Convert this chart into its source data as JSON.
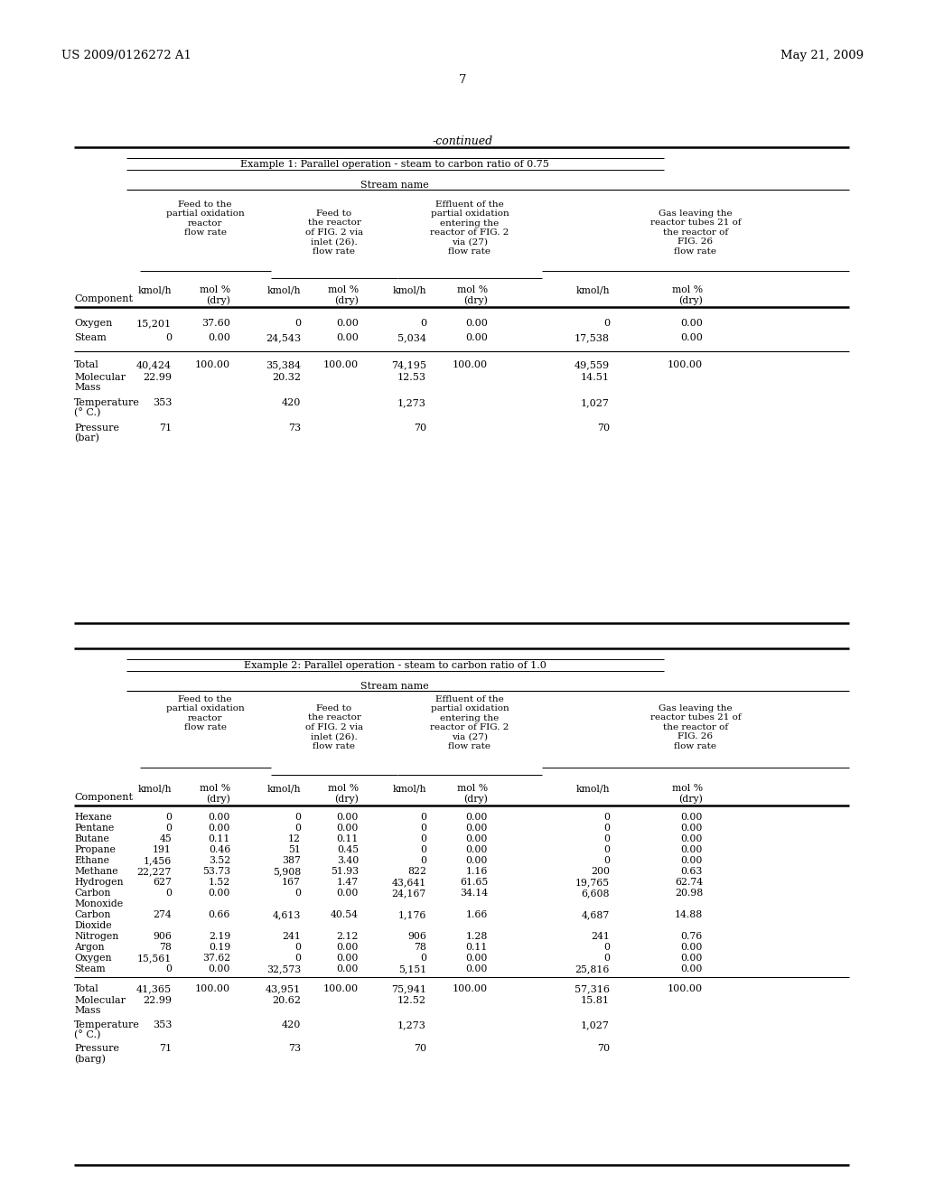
{
  "header_left": "US 2009/0126272 A1",
  "header_right": "May 21, 2009",
  "page_number": "7",
  "continued_label": "-continued",
  "table1": {
    "example_label": "Example 1: Parallel operation - steam to carbon ratio of 0.75",
    "stream_name_label": "Stream name",
    "col_header1": "Feed to the\npartial oxidation\nreactor\nflow rate",
    "col_header2": "Feed to\nthe reactor\nof FIG. 2 via\ninlet (26).\nflow rate",
    "col_header3": "Effluent of the\npartial oxidation\nentering the\nreactor of FIG. 2\nvia (27)\nflow rate",
    "col_header4": "Gas leaving the\nreactor tubes 21 of\nthe reactor of\nFIG. 26\nflow rate",
    "rows": [
      [
        "Oxygen",
        "15,201",
        "37.60",
        "0",
        "0.00",
        "0",
        "0.00",
        "0",
        "0.00"
      ],
      [
        "Steam",
        "0",
        "0.00",
        "24,543",
        "0.00",
        "5,034",
        "0.00",
        "17,538",
        "0.00"
      ]
    ],
    "summary": [
      [
        "Total",
        "40,424",
        "100.00",
        "35,384",
        "100.00",
        "74,195",
        "100.00",
        "49,559",
        "100.00"
      ],
      [
        "Molecular",
        "22.99",
        "",
        "20.32",
        "",
        "12.53",
        "",
        "14.51",
        ""
      ],
      [
        "Mass",
        "",
        "",
        "",
        "",
        "",
        "",
        "",
        ""
      ],
      [
        "Temperature",
        "353",
        "",
        "420",
        "",
        "1,273",
        "",
        "1,027",
        ""
      ],
      [
        "° C.",
        "",
        "",
        "",
        "",
        "",
        "",
        "",
        ""
      ],
      [
        "Pressure",
        "71",
        "",
        "73",
        "",
        "70",
        "",
        "70",
        ""
      ],
      [
        "bar",
        "",
        "",
        "",
        "",
        "",
        "",
        "",
        ""
      ]
    ]
  },
  "table2": {
    "example_label": "Example 2: Parallel operation - steam to carbon ratio of 1.0",
    "stream_name_label": "Stream name",
    "col_header1": "Feed to the\npartial oxidation\nreactor\nflow rate",
    "col_header2": "Feed to\nthe reactor\nof FIG. 2 via\ninlet (26).\nflow rate",
    "col_header3": "Effluent of the\npartial oxidation\nentering the\nreactor of FIG. 2\nvia (27)\nflow rate",
    "col_header4": "Gas leaving the\nreactor tubes 21 of\nthe reactor of\nFIG. 26\nflow rate",
    "rows": [
      [
        "Hexane",
        "0",
        "0.00",
        "0",
        "0.00",
        "0",
        "0.00",
        "0",
        "0.00"
      ],
      [
        "Pentane",
        "0",
        "0.00",
        "0",
        "0.00",
        "0",
        "0.00",
        "0",
        "0.00"
      ],
      [
        "Butane",
        "45",
        "0.11",
        "12",
        "0.11",
        "0",
        "0.00",
        "0",
        "0.00"
      ],
      [
        "Propane",
        "191",
        "0.46",
        "51",
        "0.45",
        "0",
        "0.00",
        "0",
        "0.00"
      ],
      [
        "Ethane",
        "1,456",
        "3.52",
        "387",
        "3.40",
        "0",
        "0.00",
        "0",
        "0.00"
      ],
      [
        "Methane",
        "22,227",
        "53.73",
        "5,908",
        "51.93",
        "822",
        "1.16",
        "200",
        "0.63"
      ],
      [
        "Hydrogen",
        "627",
        "1.52",
        "167",
        "1.47",
        "43,641",
        "61.65",
        "19,765",
        "62.74"
      ],
      [
        "Carbon",
        "0",
        "0.00",
        "0",
        "0.00",
        "24,167",
        "34.14",
        "6,608",
        "20.98"
      ],
      [
        "Monoxide",
        "",
        "",
        "",
        "",
        "",
        "",
        "",
        ""
      ],
      [
        "Carbon",
        "274",
        "0.66",
        "4,613",
        "40.54",
        "1,176",
        "1.66",
        "4,687",
        "14.88"
      ],
      [
        "Dioxide",
        "",
        "",
        "",
        "",
        "",
        "",
        "",
        ""
      ],
      [
        "Nitrogen",
        "906",
        "2.19",
        "241",
        "2.12",
        "906",
        "1.28",
        "241",
        "0.76"
      ],
      [
        "Argon",
        "78",
        "0.19",
        "0",
        "0.00",
        "78",
        "0.11",
        "0",
        "0.00"
      ],
      [
        "Oxygen",
        "15,561",
        "37.62",
        "0",
        "0.00",
        "0",
        "0.00",
        "0",
        "0.00"
      ],
      [
        "Steam",
        "0",
        "0.00",
        "32,573",
        "0.00",
        "5,151",
        "0.00",
        "25,816",
        "0.00"
      ]
    ],
    "summary": [
      [
        "Total",
        "41,365",
        "100.00",
        "43,951",
        "100.00",
        "75,941",
        "100.00",
        "57,316",
        "100.00"
      ],
      [
        "Molecular",
        "22.99",
        "",
        "20.62",
        "",
        "12.52",
        "",
        "15.81",
        ""
      ],
      [
        "Mass",
        "",
        "",
        "",
        "",
        "",
        "",
        "",
        ""
      ],
      [
        "Temperature",
        "353",
        "",
        "420",
        "",
        "1,273",
        "",
        "1,027",
        ""
      ],
      [
        "° C.",
        "",
        "",
        "",
        "",
        "",
        "",
        "",
        ""
      ],
      [
        "Pressure",
        "71",
        "",
        "73",
        "",
        "70",
        "",
        "70",
        ""
      ],
      [
        "barg",
        "",
        "",
        "",
        "",
        "",
        "",
        "",
        ""
      ]
    ]
  },
  "bg_color": "#ffffff",
  "text_color": "#000000",
  "font_family": "DejaVu Serif"
}
